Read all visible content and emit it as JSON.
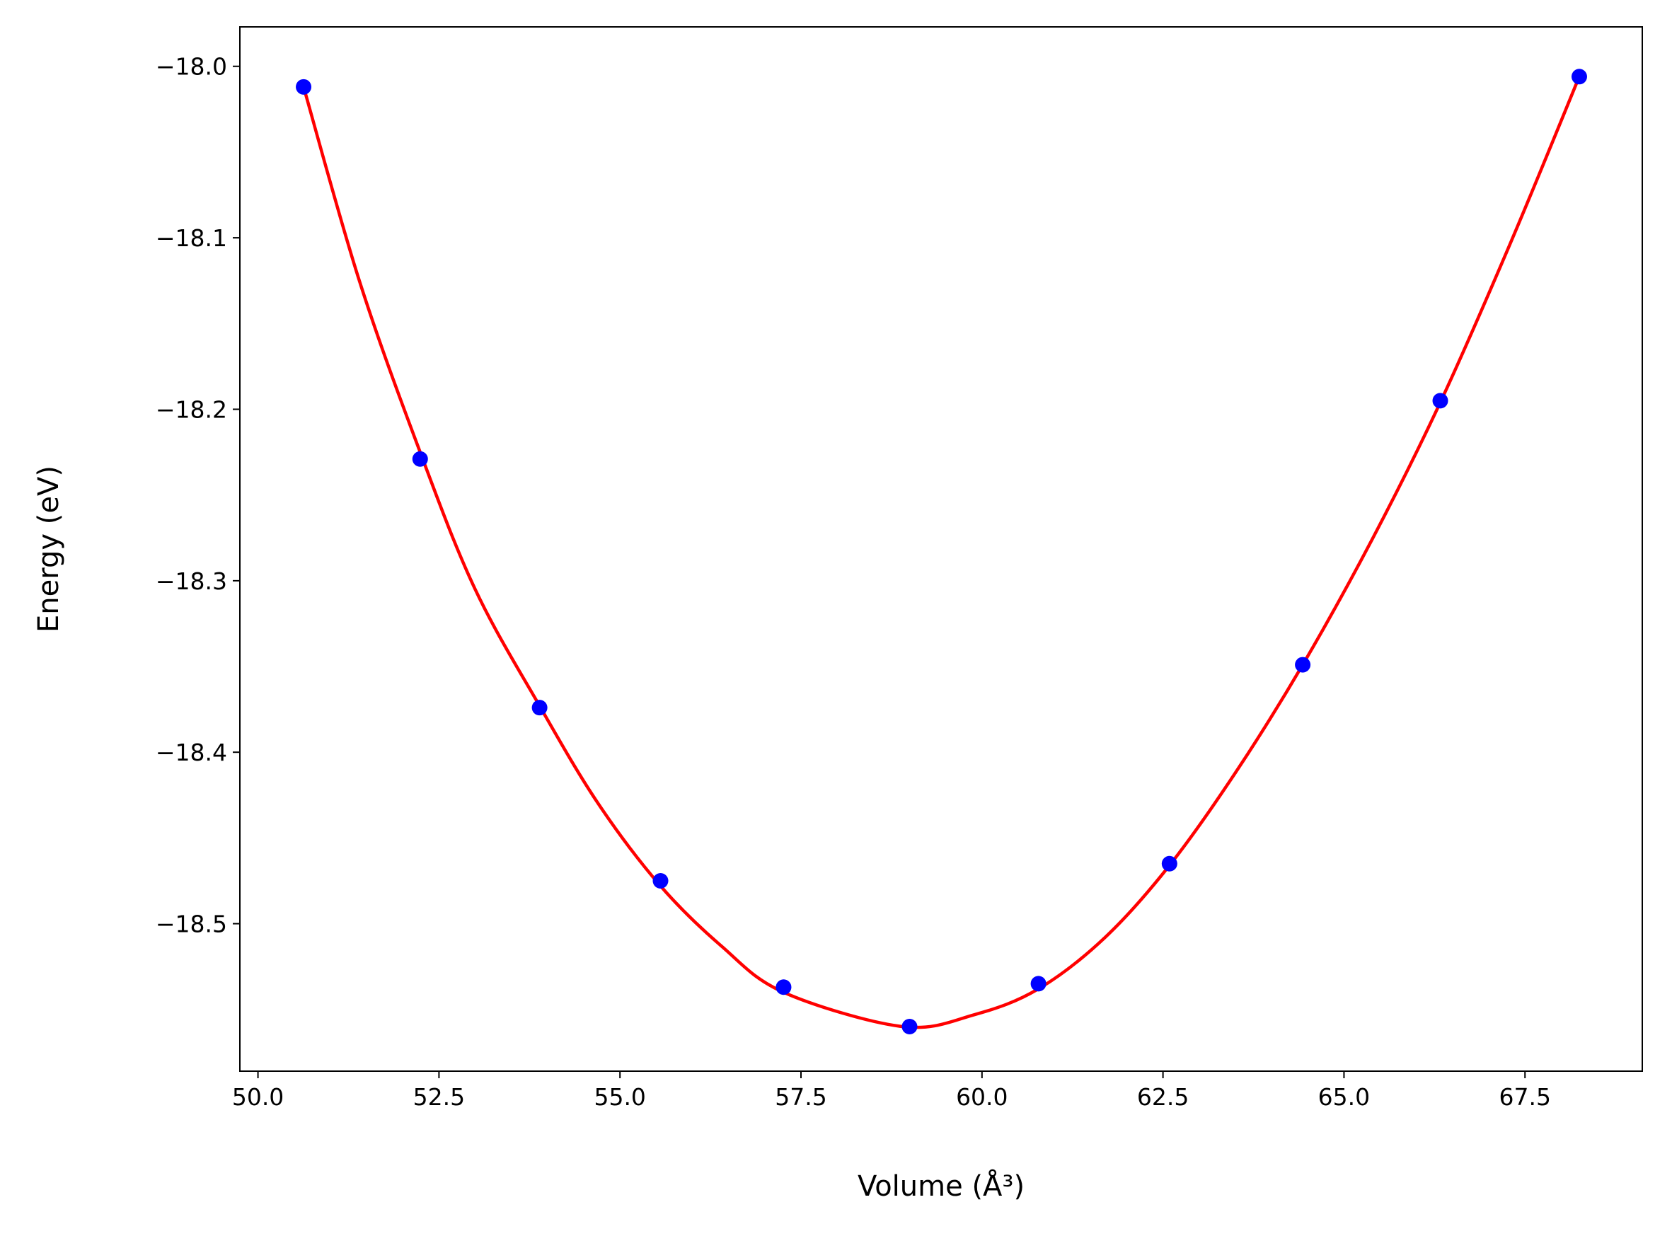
{
  "chart_data": {
    "type": "scatter",
    "x_label": "Volume (Å³)",
    "y_label": "Energy (eV)",
    "xlim": [
      49.75,
      69.12
    ],
    "ylim": [
      -18.586,
      -17.977
    ],
    "xticks": [
      {
        "value": 50,
        "label": "50.0"
      },
      52.5,
      {
        "value": 55,
        "label": "55.0"
      },
      57.5,
      {
        "value": 60,
        "label": "60.0"
      },
      62.5,
      {
        "value": 65,
        "label": "65.0"
      },
      67.5
    ],
    "yticks": [
      {
        "value": -18.5,
        "label": "−18.5"
      },
      {
        "value": -18.4,
        "label": "−18.4"
      },
      {
        "value": -18.3,
        "label": "−18.3"
      },
      {
        "value": -18.2,
        "label": "−18.2"
      },
      {
        "value": -18.1,
        "label": "−18.1"
      },
      {
        "value": -18.0,
        "label": "−18.0"
      }
    ],
    "series": [
      {
        "type": "line",
        "color": "#ff0000",
        "x": [
          50.63,
          51.4,
          52.24,
          53.0,
          53.89,
          54.7,
          55.56,
          56.4,
          57.26,
          58.9,
          59.9,
          60.78,
          61.7,
          62.59,
          63.5,
          64.43,
          65.4,
          66.33,
          67.3,
          68.25
        ],
        "values": [
          -18.012,
          -18.125,
          -18.225,
          -18.305,
          -18.373,
          -18.43,
          -18.478,
          -18.513,
          -18.54,
          -18.56,
          -18.553,
          -18.538,
          -18.508,
          -18.466,
          -18.412,
          -18.349,
          -18.275,
          -18.196,
          -18.103,
          -18.006
        ]
      },
      {
        "type": "scatter",
        "color": "#0000ff",
        "x": [
          50.63,
          52.24,
          53.89,
          55.56,
          57.26,
          59.0,
          60.78,
          62.59,
          64.43,
          66.33,
          68.25
        ],
        "values": [
          -18.012,
          -18.229,
          -18.374,
          -18.475,
          -18.537,
          -18.56,
          -18.535,
          -18.465,
          -18.349,
          -18.195,
          -18.006
        ]
      }
    ]
  }
}
